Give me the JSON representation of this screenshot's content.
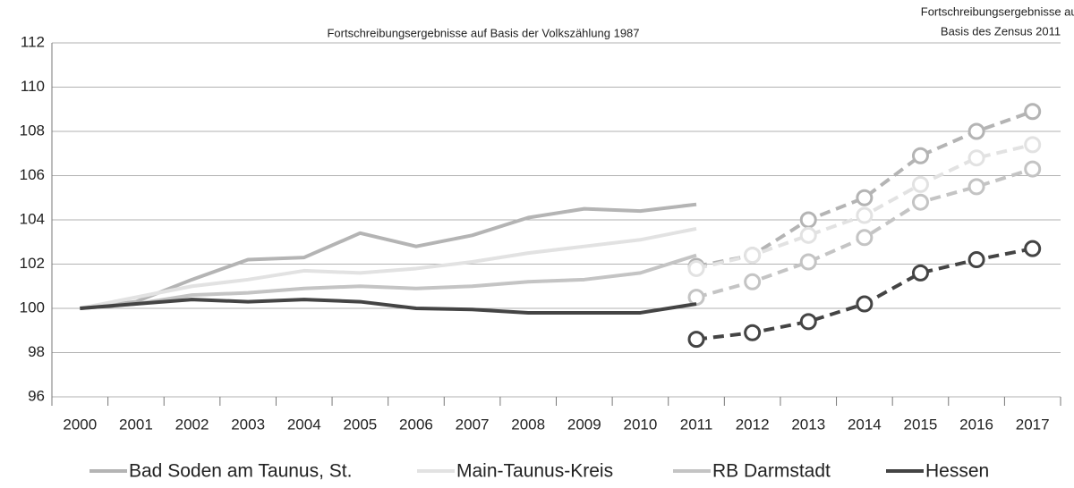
{
  "chart_data": {
    "type": "line",
    "annotation_left": "Fortschreibungsergebnisse auf Basis der Volkszählung 1987",
    "annotation_right": [
      "Fortschreibungsergebnisse auf",
      "Basis des Zensus 2011"
    ],
    "categories": [
      "2000",
      "2001",
      "2002",
      "2003",
      "2004",
      "2005",
      "2006",
      "2007",
      "2008",
      "2009",
      "2010",
      "2011",
      "2012",
      "2013",
      "2014",
      "2015",
      "2016",
      "2017"
    ],
    "ylim": [
      96,
      112
    ],
    "yticks": [
      96,
      98,
      100,
      102,
      104,
      106,
      108,
      110,
      112
    ],
    "grid": true,
    "legend": "bottom",
    "series": [
      {
        "name": "Bad Soden am Taunus, St.",
        "color": "#b4b4b4",
        "values": [
          100,
          100.3,
          101.3,
          102.2,
          102.3,
          103.4,
          102.8,
          103.3,
          104.1,
          104.5,
          104.4,
          104.7,
          null,
          null,
          null,
          null,
          null,
          null
        ],
        "zensus_values": [
          null,
          null,
          null,
          null,
          null,
          null,
          null,
          null,
          null,
          null,
          null,
          101.9,
          102.4,
          104.0,
          105.0,
          106.9,
          108.0,
          108.9
        ]
      },
      {
        "name": "Main-Taunus-Kreis",
        "color": "#e2e2e2",
        "values": [
          100,
          100.5,
          101.0,
          101.3,
          101.7,
          101.6,
          101.8,
          102.1,
          102.5,
          102.8,
          103.1,
          103.6,
          null,
          null,
          null,
          null,
          null,
          null
        ],
        "zensus_values": [
          null,
          null,
          null,
          null,
          null,
          null,
          null,
          null,
          null,
          null,
          null,
          101.8,
          102.4,
          103.3,
          104.2,
          105.6,
          106.8,
          107.4
        ]
      },
      {
        "name": "RB Darmstadt",
        "color": "#c4c4c4",
        "values": [
          100,
          100.2,
          100.6,
          100.7,
          100.9,
          101.0,
          100.9,
          101.0,
          101.2,
          101.3,
          101.6,
          102.4,
          null,
          null,
          null,
          null,
          null,
          null
        ],
        "zensus_values": [
          null,
          null,
          null,
          null,
          null,
          null,
          null,
          null,
          null,
          null,
          null,
          100.5,
          101.2,
          102.1,
          103.2,
          104.8,
          105.5,
          106.3
        ]
      },
      {
        "name": "Hessen",
        "color": "#444444",
        "values": [
          100,
          100.2,
          100.4,
          100.3,
          100.4,
          100.3,
          100.0,
          99.95,
          99.8,
          99.8,
          99.8,
          100.2,
          null,
          null,
          null,
          null,
          null,
          null
        ],
        "zensus_values": [
          null,
          null,
          null,
          null,
          null,
          null,
          null,
          null,
          null,
          null,
          null,
          98.6,
          98.9,
          99.4,
          100.2,
          101.6,
          102.2,
          102.7
        ]
      }
    ]
  }
}
